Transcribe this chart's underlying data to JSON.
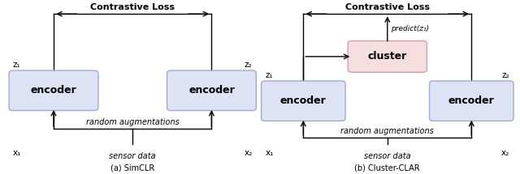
{
  "fig_width": 6.4,
  "fig_height": 2.15,
  "dpi": 100,
  "bg_color": "#ffffff",
  "encoder_color": "#dde3f5",
  "encoder_edge": "#a0aad0",
  "cluster_color": "#f5dde0",
  "cluster_edge": "#d0a0a8",
  "left": {
    "title": "Contrastive Loss",
    "enc_left_label": "encoder",
    "enc_right_label": "encoder",
    "z1": "z₁",
    "z2": "z₂",
    "x1": "x₁",
    "x2": "x₂",
    "aug": "random augmentations",
    "sensor": "sensor data",
    "caption": "(a) SimCLR"
  },
  "right": {
    "title": "Contrastive Loss",
    "enc_left_label": "encoder",
    "enc_right_label": "encoder",
    "cluster": "cluster",
    "predict": "predict(z₁)",
    "z1": "z₁",
    "z2": "z₂",
    "x1": "x₁",
    "x2": "x₂",
    "aug": "random augmentations",
    "sensor": "sensor data",
    "caption": "(b) Cluster-CLAR"
  }
}
